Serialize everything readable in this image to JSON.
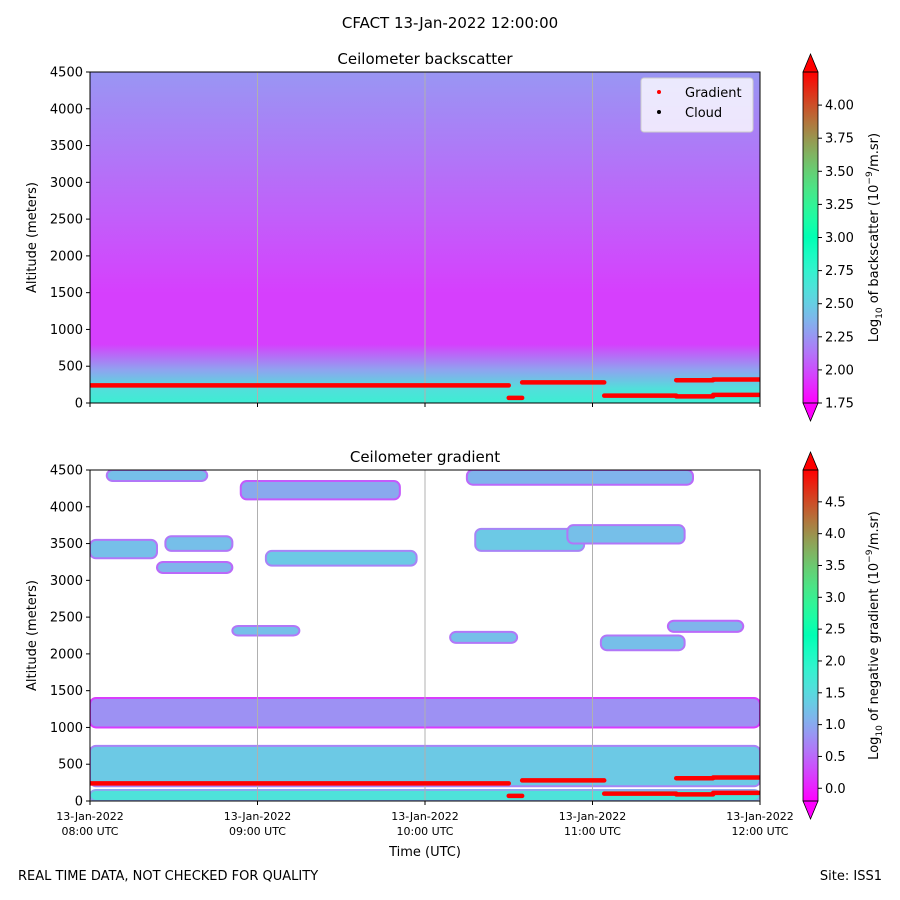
{
  "figure": {
    "suptitle": "CFACT 13-Jan-2022 12:00:00",
    "footer_left": "REAL TIME DATA, NOT CHECKED FOR QUALITY",
    "footer_right": "Site: ISS1"
  },
  "chart_data": [
    {
      "type": "heatmap",
      "title": "Ceilometer backscatter",
      "xlabel": "",
      "ylabel": "Altitude (meters)",
      "xlim": [
        0,
        4
      ],
      "ylim": [
        0,
        4500
      ],
      "x_ticks": [
        {
          "value": 0,
          "line1": "13-Jan-2022",
          "line2": "08:00 UTC"
        },
        {
          "value": 1,
          "line1": "13-Jan-2022",
          "line2": "09:00 UTC"
        },
        {
          "value": 2,
          "line1": "13-Jan-2022",
          "line2": "10:00 UTC"
        },
        {
          "value": 3,
          "line1": "13-Jan-2022",
          "line2": "11:00 UTC"
        },
        {
          "value": 4,
          "line1": "13-Jan-2022",
          "line2": "12:00 UTC"
        }
      ],
      "x_tick_labels_shown": false,
      "y_ticks": [
        0,
        500,
        1000,
        1500,
        2000,
        2500,
        3000,
        3500,
        4000,
        4500
      ],
      "grid": "vertical lines at x ticks",
      "colormap": "rainbow",
      "colorbar": {
        "label_prefix": "Log",
        "label_sub": "10",
        "label_mid": " of backscatter (10",
        "label_sup": "−9",
        "label_suffix": "/m.sr)",
        "vmin": 1.75,
        "vmax": 4.25,
        "extend": "both",
        "ticks": [
          "1.75",
          "2.00",
          "2.25",
          "2.50",
          "2.75",
          "3.00",
          "3.25",
          "3.50",
          "3.75",
          "4.00"
        ]
      },
      "background_profile": [
        {
          "altitude": 0,
          "value": 2.7
        },
        {
          "altitude": 200,
          "value": 2.6
        },
        {
          "altitude": 450,
          "value": 2.3
        },
        {
          "altitude": 800,
          "value": 1.95
        },
        {
          "altitude": 1500,
          "value": 1.95
        },
        {
          "altitude": 2500,
          "value": 2.05
        },
        {
          "altitude": 3500,
          "value": 2.15
        },
        {
          "altitude": 4500,
          "value": 2.25
        }
      ],
      "legend": {
        "position": "upper right",
        "entries": [
          {
            "label": "Gradient",
            "color": "#ff0000"
          },
          {
            "label": "Cloud",
            "color": "#000000"
          }
        ]
      },
      "gradient_points": [
        {
          "x": [
            0.0,
            2.5
          ],
          "altitude": [
            240,
            240
          ]
        },
        {
          "x": [
            2.5,
            2.58
          ],
          "altitude": [
            70,
            70
          ]
        },
        {
          "x": [
            2.58,
            3.07
          ],
          "altitude": [
            280,
            280
          ]
        },
        {
          "x": [
            3.07,
            3.5
          ],
          "altitude": [
            100,
            100
          ]
        },
        {
          "x": [
            3.5,
            3.72
          ],
          "altitude": [
            310,
            310
          ]
        },
        {
          "x": [
            3.5,
            3.72
          ],
          "altitude": [
            90,
            90
          ]
        },
        {
          "x": [
            3.72,
            4.0
          ],
          "altitude": [
            320,
            320
          ]
        },
        {
          "x": [
            3.72,
            4.0
          ],
          "altitude": [
            110,
            110
          ]
        }
      ]
    },
    {
      "type": "heatmap",
      "title": "Ceilometer gradient",
      "xlabel": "Time (UTC)",
      "ylabel": "Altitude (meters)",
      "xlim": [
        0,
        4
      ],
      "ylim": [
        0,
        4500
      ],
      "x_ticks": [
        {
          "value": 0,
          "line1": "13-Jan-2022",
          "line2": "08:00 UTC"
        },
        {
          "value": 1,
          "line1": "13-Jan-2022",
          "line2": "09:00 UTC"
        },
        {
          "value": 2,
          "line1": "13-Jan-2022",
          "line2": "10:00 UTC"
        },
        {
          "value": 3,
          "line1": "13-Jan-2022",
          "line2": "11:00 UTC"
        },
        {
          "value": 4,
          "line1": "13-Jan-2022",
          "line2": "12:00 UTC"
        }
      ],
      "x_tick_labels_shown": true,
      "y_ticks": [
        0,
        500,
        1000,
        1500,
        2000,
        2500,
        3000,
        3500,
        4000,
        4500
      ],
      "grid": "vertical lines at x ticks",
      "colormap": "rainbow",
      "colorbar": {
        "label_prefix": "Log",
        "label_sub": "10",
        "label_mid": " of negative gradient (10",
        "label_sup": "−9",
        "label_suffix": "/m.sr)",
        "vmin": -0.2,
        "vmax": 5.0,
        "extend": "both",
        "ticks": [
          "0.0",
          "0.5",
          "1.0",
          "1.5",
          "2.0",
          "2.5",
          "3.0",
          "3.5",
          "4.0",
          "4.5"
        ]
      },
      "layers": [
        {
          "x": [
            0.0,
            4.0
          ],
          "altitude": [
            200,
            750
          ],
          "value": 1.3
        },
        {
          "x": [
            0.0,
            4.0
          ],
          "altitude": [
            0,
            150
          ],
          "value": 1.6
        },
        {
          "x": [
            0.0,
            4.0
          ],
          "altitude": [
            1000,
            1400
          ],
          "value": 0.8
        },
        {
          "x": [
            0.0,
            0.4
          ],
          "altitude": [
            3300,
            3550
          ],
          "value": 1.2
        },
        {
          "x": [
            0.45,
            0.85
          ],
          "altitude": [
            3400,
            3600
          ],
          "value": 1.2
        },
        {
          "x": [
            1.05,
            1.95
          ],
          "altitude": [
            3200,
            3400
          ],
          "value": 1.3
        },
        {
          "x": [
            2.3,
            2.95
          ],
          "altitude": [
            3400,
            3700
          ],
          "value": 1.3
        },
        {
          "x": [
            2.85,
            3.55
          ],
          "altitude": [
            3500,
            3750
          ],
          "value": 1.2
        },
        {
          "x": [
            0.4,
            0.85
          ],
          "altitude": [
            3100,
            3250
          ],
          "value": 1.1
        },
        {
          "x": [
            0.9,
            1.85
          ],
          "altitude": [
            4100,
            4350
          ],
          "value": 1.0
        },
        {
          "x": [
            2.25,
            3.6
          ],
          "altitude": [
            4300,
            4500
          ],
          "value": 1.1
        },
        {
          "x": [
            0.1,
            0.7
          ],
          "altitude": [
            4350,
            4500
          ],
          "value": 1.2
        },
        {
          "x": [
            0.85,
            1.25
          ],
          "altitude": [
            2250,
            2380
          ],
          "value": 1.2
        },
        {
          "x": [
            2.15,
            2.55
          ],
          "altitude": [
            2150,
            2300
          ],
          "value": 1.2
        },
        {
          "x": [
            3.05,
            3.55
          ],
          "altitude": [
            2050,
            2250
          ],
          "value": 1.2
        },
        {
          "x": [
            3.45,
            3.9
          ],
          "altitude": [
            2300,
            2450
          ],
          "value": 1.1
        }
      ],
      "gradient_points": [
        {
          "x": [
            0.0,
            2.5
          ],
          "altitude": [
            240,
            240
          ]
        },
        {
          "x": [
            2.5,
            2.58
          ],
          "altitude": [
            70,
            70
          ]
        },
        {
          "x": [
            2.58,
            3.07
          ],
          "altitude": [
            280,
            280
          ]
        },
        {
          "x": [
            3.07,
            3.5
          ],
          "altitude": [
            100,
            100
          ]
        },
        {
          "x": [
            3.5,
            3.72
          ],
          "altitude": [
            310,
            310
          ]
        },
        {
          "x": [
            3.5,
            3.72
          ],
          "altitude": [
            90,
            90
          ]
        },
        {
          "x": [
            3.72,
            4.0
          ],
          "altitude": [
            320,
            320
          ]
        },
        {
          "x": [
            3.72,
            4.0
          ],
          "altitude": [
            110,
            110
          ]
        }
      ]
    }
  ]
}
